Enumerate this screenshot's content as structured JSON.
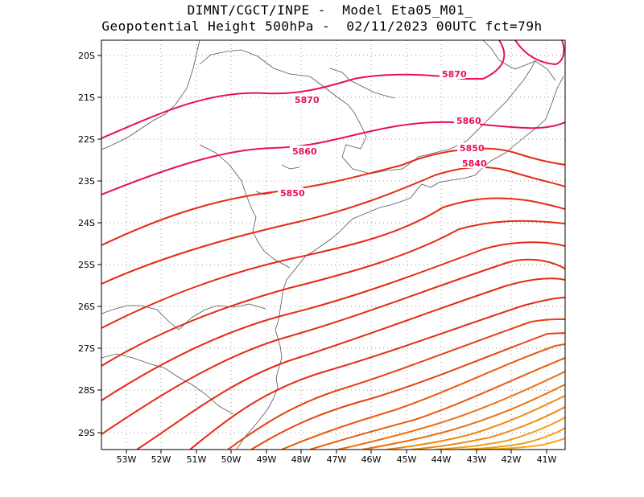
{
  "header": {
    "title_line1": "DIMNT/CGCT/INPE -  Model Eta05_M01_",
    "title_line2": "Geopotential Height 500hPa -  02/11/2023 00UTC fct=79h"
  },
  "map": {
    "lon_ticks": [
      "53W",
      "52W",
      "51W",
      "50W",
      "49W",
      "48W",
      "47W",
      "46W",
      "45W",
      "44W",
      "43W",
      "42W",
      "41W"
    ],
    "lat_ticks": [
      "20S",
      "21S",
      "22S",
      "23S",
      "24S",
      "25S",
      "26S",
      "27S",
      "28S",
      "29S"
    ],
    "contour_labels": [
      "5870",
      "5870",
      "5860",
      "5860",
      "5850",
      "5850",
      "5840"
    ],
    "colors": {
      "high_contours": "#e8105a",
      "mid_contours": "#e52b15",
      "low_contours": "#f08a10",
      "coastline": "#555555",
      "grid": "#9a9a9a"
    }
  }
}
